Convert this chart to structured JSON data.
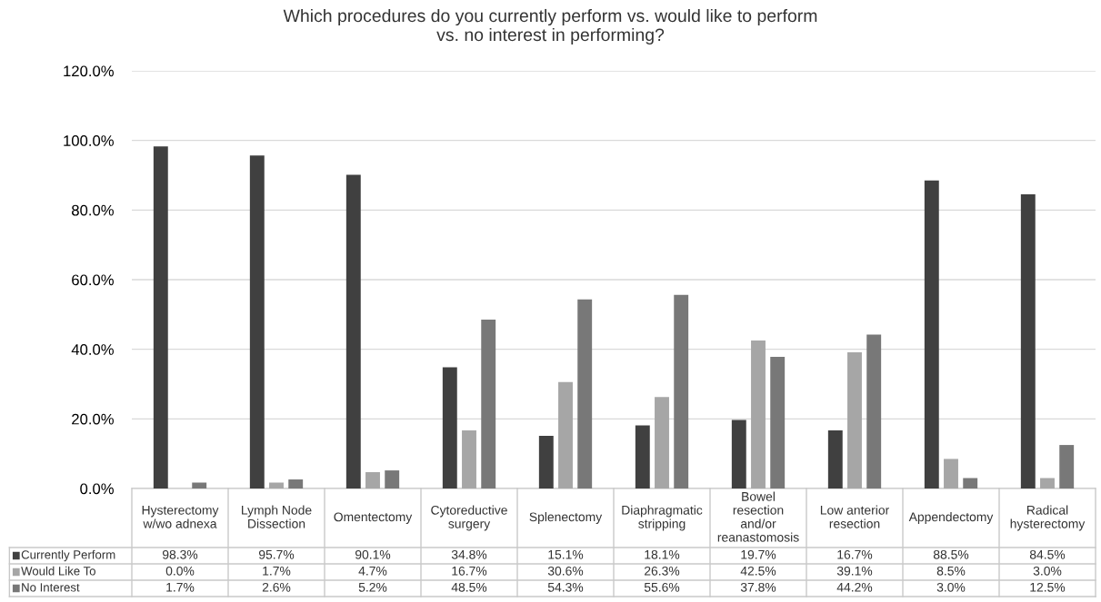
{
  "chart_data": {
    "type": "bar",
    "title": "Which procedures do you currently perform vs. would like to perform\nvs. no interest in performing?",
    "categories": [
      "Hysterectomy\nw/wo adnexa",
      "Lymph Node\nDissection",
      "Omentectomy",
      "Cytoreductive\nsurgery",
      "Splenectomy",
      "Diaphragmatic\nstripping",
      "Bowel\nresection\nand/or\nreanastomosis",
      "Low anterior\nresection",
      "Appendectomy",
      "Radical\nhysterectomy"
    ],
    "series": [
      {
        "name": "Currently Perform",
        "color": "#404040",
        "values": [
          98.3,
          95.7,
          90.1,
          34.8,
          15.1,
          18.1,
          19.7,
          16.7,
          88.5,
          84.5
        ],
        "value_labels": [
          "98.3%",
          "95.7%",
          "90.1%",
          "34.8%",
          "15.1%",
          "18.1%",
          "19.7%",
          "16.7%",
          "88.5%",
          "84.5%"
        ]
      },
      {
        "name": "Would Like To",
        "color": "#a6a6a6",
        "values": [
          0.0,
          1.7,
          4.7,
          16.7,
          30.6,
          26.3,
          42.5,
          39.1,
          8.5,
          3.0
        ],
        "value_labels": [
          "0.0%",
          "1.7%",
          "4.7%",
          "16.7%",
          "30.6%",
          "26.3%",
          "42.5%",
          "39.1%",
          "8.5%",
          "3.0%"
        ]
      },
      {
        "name": "No Interest",
        "color": "#787878",
        "values": [
          1.7,
          2.6,
          5.2,
          48.5,
          54.3,
          55.6,
          37.8,
          44.2,
          3.0,
          12.5
        ],
        "value_labels": [
          "1.7%",
          "2.6%",
          "5.2%",
          "48.5%",
          "54.3%",
          "55.6%",
          "37.8%",
          "44.2%",
          "3.0%",
          "12.5%"
        ]
      }
    ],
    "ylim": [
      0,
      120
    ],
    "yticks": [
      {
        "value": 0,
        "label": "0.0%"
      },
      {
        "value": 20,
        "label": "20.0%"
      },
      {
        "value": 40,
        "label": "40.0%"
      },
      {
        "value": 60,
        "label": "60.0%"
      },
      {
        "value": 80,
        "label": "80.0%"
      },
      {
        "value": 100,
        "label": "100.0%"
      },
      {
        "value": 120,
        "label": "120.0%"
      }
    ],
    "grid": "y",
    "legend": "bottom left"
  }
}
